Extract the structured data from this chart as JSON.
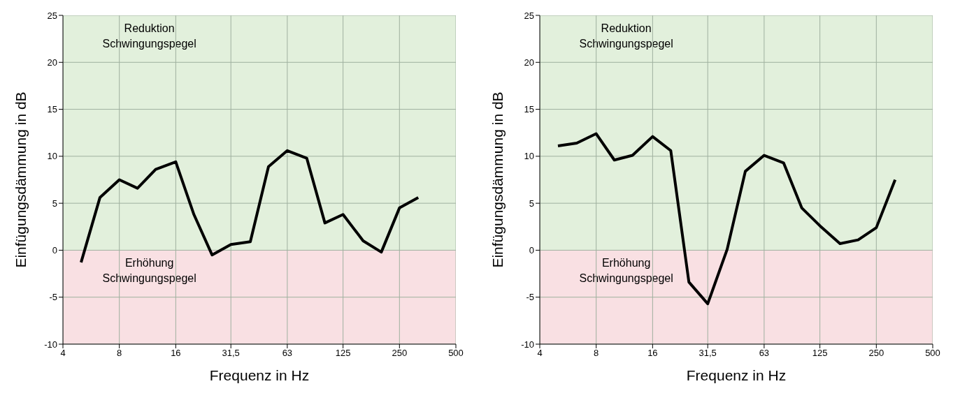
{
  "chart_data": [
    {
      "type": "line",
      "xlabel": "Frequenz in Hz",
      "ylabel": "Einfügungsdämmung in dB",
      "log": "x",
      "grid": true,
      "marker": "none",
      "line_style": "solid",
      "xlim": [
        4,
        500
      ],
      "xticks": [
        4,
        8,
        16,
        {
          "value": 31.5,
          "label": "31,5"
        },
        63,
        125,
        250,
        500
      ],
      "ylim": [
        -10,
        25
      ],
      "yticks": [
        -10,
        -5,
        0,
        5,
        10,
        15,
        20,
        25
      ],
      "x": [
        5,
        6.3,
        8,
        10,
        12.5,
        16,
        20,
        25,
        31.5,
        40,
        50,
        63,
        80,
        100,
        125,
        160,
        200,
        250,
        315
      ],
      "series": [
        {
          "color": "#000000",
          "values": [
            -1.3,
            5.6,
            7.5,
            6.6,
            8.6,
            9.4,
            3.8,
            -0.5,
            0.6,
            0.9,
            8.9,
            10.6,
            9.8,
            2.9,
            3.8,
            1.0,
            -0.2,
            4.5,
            5.6
          ]
        }
      ],
      "bands": [
        {
          "axis": "y",
          "from": 0,
          "to": 25,
          "label": "Reduktion\nSchwingungspegel",
          "color": "#e2f0dc"
        },
        {
          "axis": "y",
          "from": -10,
          "to": 0,
          "label": "Erhöhung\nSchwingungspegel",
          "color": "#f9e0e3"
        }
      ]
    },
    {
      "type": "line",
      "xlabel": "Frequenz in Hz",
      "ylabel": "Einfügungsdämmung in dB",
      "log": "x",
      "grid": true,
      "marker": "none",
      "line_style": "solid",
      "xlim": [
        4,
        500
      ],
      "xticks": [
        4,
        8,
        16,
        {
          "value": 31.5,
          "label": "31,5"
        },
        63,
        125,
        250,
        500
      ],
      "ylim": [
        -10,
        25
      ],
      "yticks": [
        -10,
        -5,
        0,
        5,
        10,
        15,
        20,
        25
      ],
      "x": [
        5,
        6.3,
        8,
        10,
        12.5,
        16,
        20,
        25,
        31.5,
        40,
        50,
        63,
        80,
        100,
        125,
        160,
        200,
        250,
        315
      ],
      "series": [
        {
          "color": "#000000",
          "values": [
            11.1,
            11.4,
            12.4,
            9.6,
            10.1,
            12.1,
            10.6,
            -3.4,
            -5.7,
            0.1,
            8.4,
            10.1,
            9.3,
            4.5,
            2.6,
            0.7,
            1.1,
            2.4,
            7.5
          ]
        }
      ],
      "bands": [
        {
          "axis": "y",
          "from": 0,
          "to": 25,
          "label": "Reduktion\nSchwingungspegel",
          "color": "#e2f0dc"
        },
        {
          "axis": "y",
          "from": -10,
          "to": 0,
          "label": "Erhöhung\nSchwingungspegel",
          "color": "#f9e0e3"
        }
      ]
    }
  ]
}
